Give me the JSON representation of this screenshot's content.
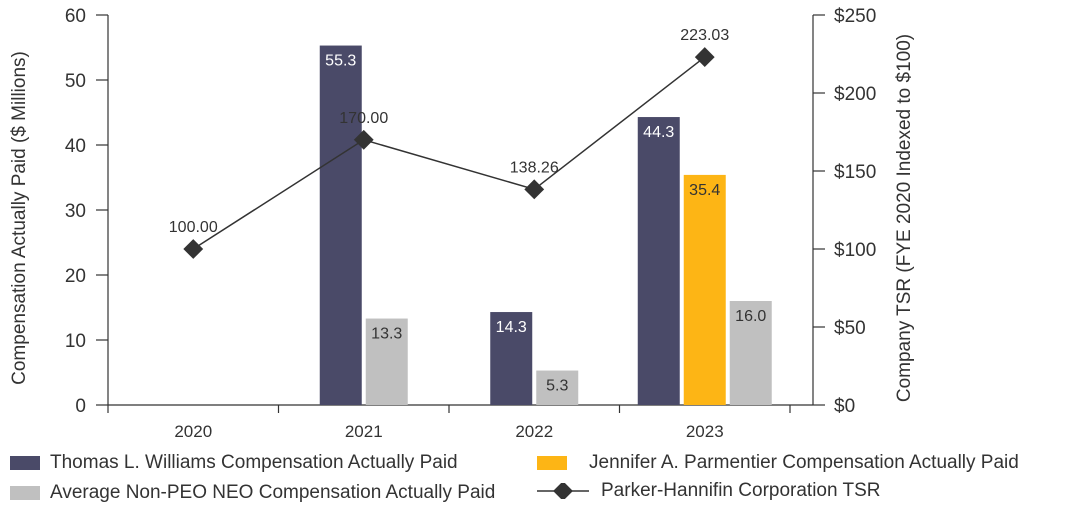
{
  "chart_data": {
    "type": "bar",
    "categories": [
      "2020",
      "2021",
      "2022",
      "2023"
    ],
    "ylabel": "Compensation Actually Paid ($ Millions)",
    "y2label": "Company TSR (FYE 2020 Indexed to $100)",
    "ylim": [
      0,
      60
    ],
    "yticks": [
      0,
      10,
      20,
      30,
      40,
      50,
      60
    ],
    "y2lim": [
      0,
      250
    ],
    "y2ticks": [
      "$0",
      "$50",
      "$100",
      "$150",
      "$200",
      "$250"
    ],
    "y2tick_values": [
      0,
      50,
      100,
      150,
      200,
      250
    ],
    "series": [
      {
        "name": "Thomas L. Williams Compensation Actually Paid",
        "color": "#4a4a68",
        "values": [
          null,
          55.3,
          14.3,
          44.3
        ],
        "labels": [
          "",
          "55.3",
          "14.3",
          "44.3"
        ]
      },
      {
        "name": "Jennifer A. Parmentier Compensation Actually Paid",
        "color": "#fdb515",
        "values": [
          null,
          null,
          null,
          35.4
        ],
        "labels": [
          "",
          "",
          "",
          "35.4"
        ]
      },
      {
        "name": "Average Non-PEO NEO Compensation Actually Paid",
        "color": "#c0c0c0",
        "values": [
          null,
          13.3,
          5.3,
          16.0
        ],
        "labels": [
          "",
          "13.3",
          "5.3",
          "16.0"
        ]
      }
    ],
    "line_series": {
      "name": "Parker-Hannifin Corporation TSR",
      "color": "#333333",
      "axis": "right",
      "values": [
        100.0,
        170.0,
        138.26,
        223.03
      ],
      "labels": [
        "100.00",
        "170.00",
        "138.26",
        "223.03"
      ]
    }
  },
  "legend": {
    "items": [
      {
        "label": "Thomas L. Williams Compensation Actually Paid",
        "color": "#4a4a68",
        "kind": "bar"
      },
      {
        "label": "Jennifer A. Parmentier Compensation Actually Paid",
        "color": "#fdb515",
        "kind": "bar"
      },
      {
        "label": "Average Non-PEO NEO Compensation Actually Paid",
        "color": "#c0c0c0",
        "kind": "bar"
      },
      {
        "label": "Parker-Hannifin Corporation TSR",
        "color": "#333333",
        "kind": "line"
      }
    ]
  }
}
